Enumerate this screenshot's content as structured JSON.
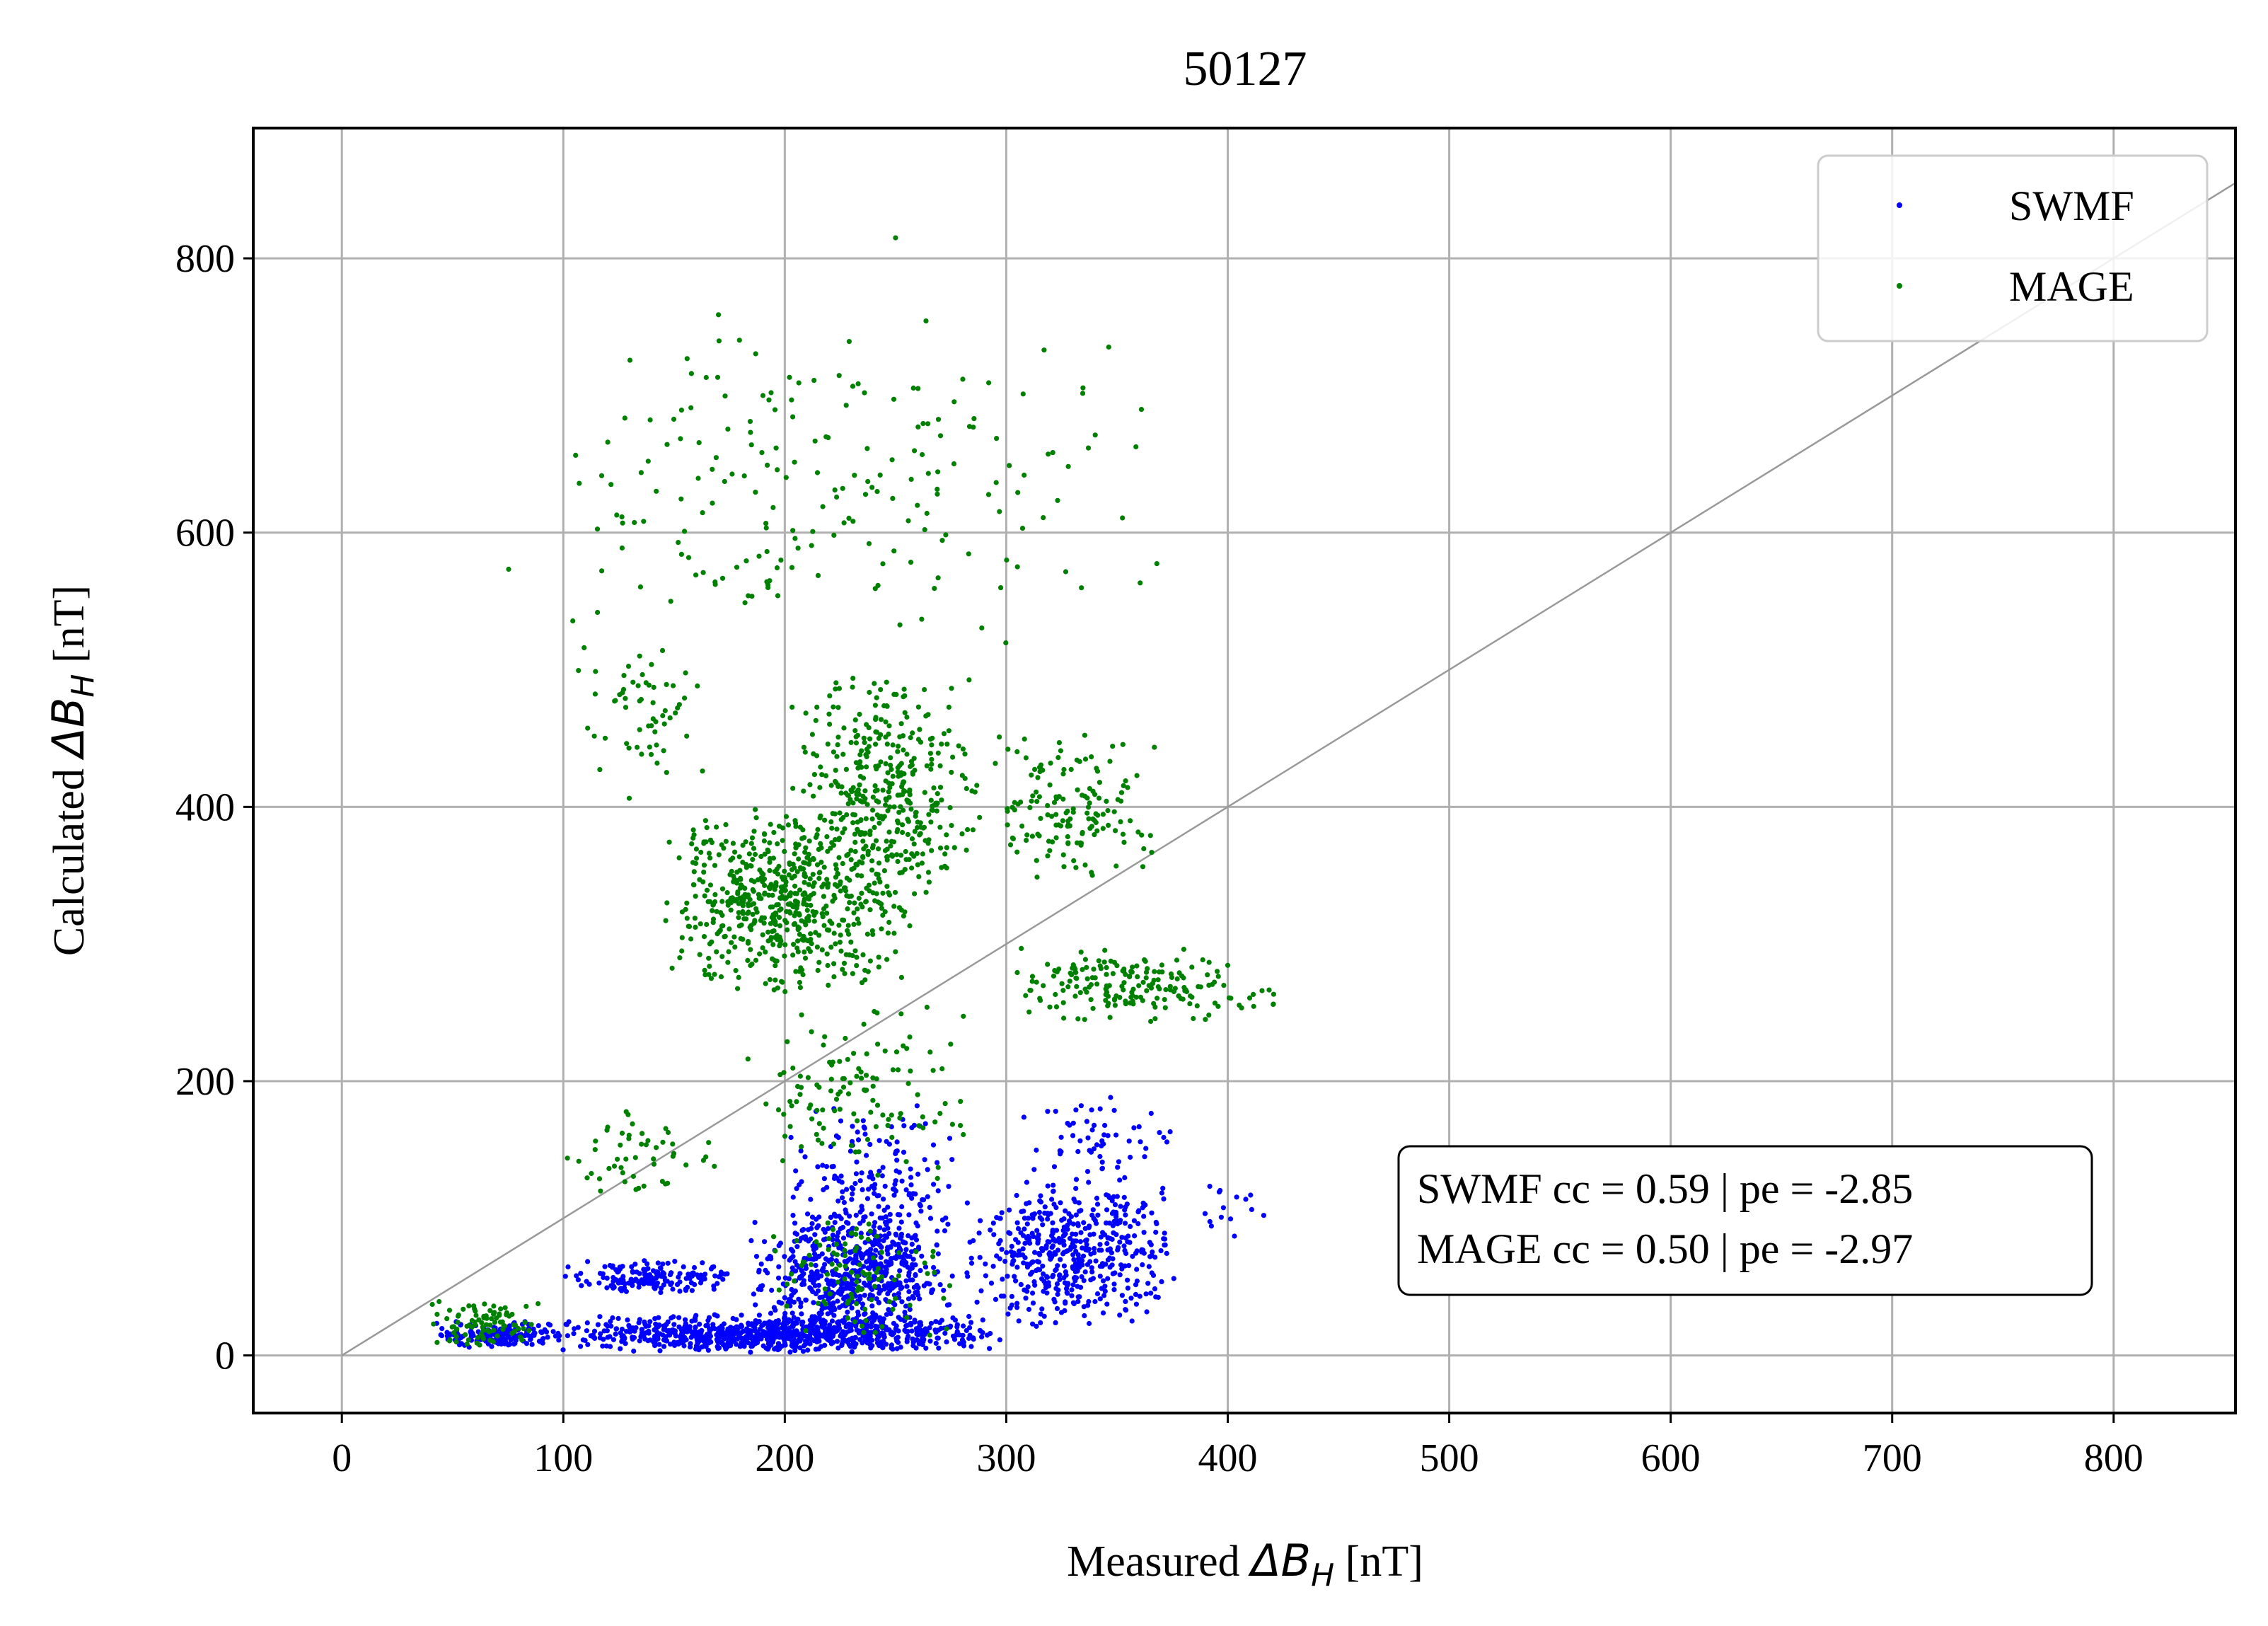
{
  "chart_data": {
    "type": "scatter",
    "title": "50127",
    "xlabel_prefix": "Measured ",
    "xlabel_symbol": "ΔB",
    "xlabel_sub": "H",
    "xlabel_suffix": " [nT]",
    "ylabel_prefix": "Calculated ",
    "ylabel_symbol": "ΔB",
    "ylabel_sub": "H",
    "ylabel_suffix": " [nT]",
    "xlim": [
      -40,
      855
    ],
    "ylim": [
      -42,
      895
    ],
    "xticks": [
      0,
      100,
      200,
      300,
      400,
      500,
      600,
      700,
      800
    ],
    "yticks": [
      0,
      200,
      400,
      600,
      800
    ],
    "grid": true,
    "identity_line": true,
    "legend_position": "top-right",
    "series": [
      {
        "name": "SWMF",
        "color": "#0000ff",
        "clusters": [
          {
            "x": [
              40,
              100
            ],
            "y": [
              5,
              25
            ],
            "n": 180
          },
          {
            "x": [
              90,
              300
            ],
            "y": [
              2,
              30
            ],
            "n": 900
          },
          {
            "x": [
              100,
              180
            ],
            "y": [
              45,
              70
            ],
            "n": 160
          },
          {
            "x": [
              180,
              280
            ],
            "y": [
              10,
              110
            ],
            "n": 600
          },
          {
            "x": [
              200,
              280
            ],
            "y": [
              60,
              190
            ],
            "n": 180
          },
          {
            "x": [
              280,
              380
            ],
            "y": [
              20,
              130
            ],
            "n": 500
          },
          {
            "x": [
              300,
              380
            ],
            "y": [
              120,
              190
            ],
            "n": 60
          },
          {
            "x": [
              380,
              425
            ],
            "y": [
              80,
              135
            ],
            "n": 15
          }
        ]
      },
      {
        "name": "MAGE",
        "color": "#008000",
        "clusters": [
          {
            "x": [
              38,
              95
            ],
            "y": [
              5,
              42
            ],
            "n": 90
          },
          {
            "x": [
              95,
              175
            ],
            "y": [
              100,
              190
            ],
            "n": 50
          },
          {
            "x": [
              145,
              260
            ],
            "y": [
              260,
              400
            ],
            "n": 600
          },
          {
            "x": [
              200,
              290
            ],
            "y": [
              320,
              500
            ],
            "n": 400
          },
          {
            "x": [
              290,
              370
            ],
            "y": [
              340,
              460
            ],
            "n": 150
          },
          {
            "x": [
              300,
              410
            ],
            "y": [
              240,
              300
            ],
            "n": 180
          },
          {
            "x": [
              100,
              170
            ],
            "y": [
              400,
              530
            ],
            "n": 60
          },
          {
            "x": [
              70,
              390
            ],
            "y": [
              500,
              770
            ],
            "n": 200
          },
          {
            "x": [
              180,
              290
            ],
            "y": [
              120,
              260
            ],
            "n": 120
          },
          {
            "x": [
              190,
              280
            ],
            "y": [
              10,
              110
            ],
            "n": 100
          },
          {
            "x": [
              400,
              425
            ],
            "y": [
              245,
              270
            ],
            "n": 10
          }
        ],
        "extra_points": [
          [
            250,
            815
          ]
        ]
      }
    ],
    "annotations": [
      "SWMF cc = 0.59 | pe = -2.85",
      "MAGE cc = 0.50 | pe = -2.97"
    ]
  }
}
